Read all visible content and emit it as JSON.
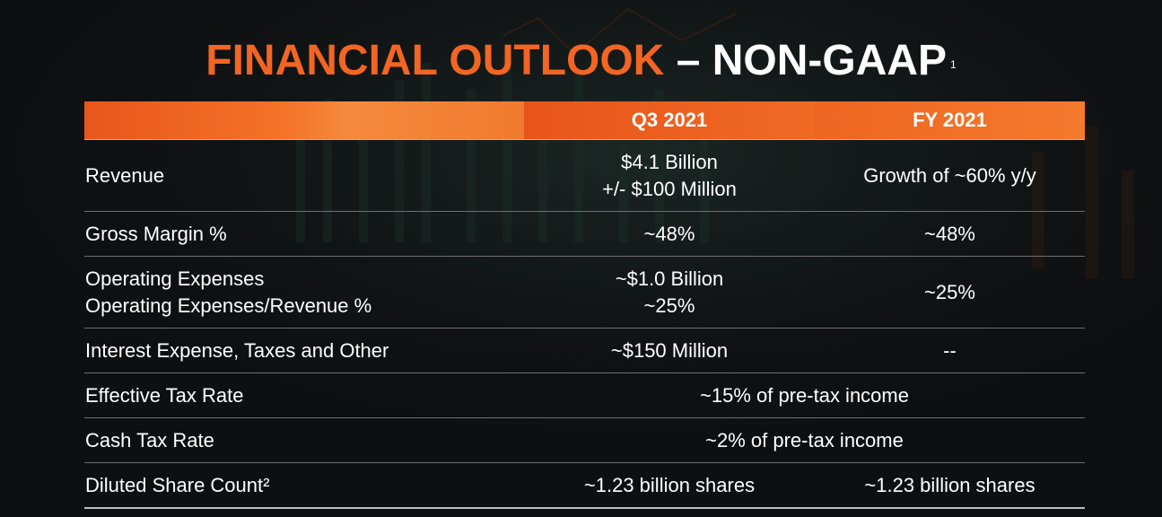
{
  "title": {
    "accent": "FINANCIAL OUTLOOK",
    "rest": "– NON-GAAP",
    "footnote": "1"
  },
  "table": {
    "headers": {
      "label": "",
      "q3": "Q3 2021",
      "fy": "FY 2021"
    },
    "rows": {
      "revenue": {
        "label": "Revenue",
        "q3_line1": "$4.1 Billion",
        "q3_line2": "+/- $100 Million",
        "fy": "Growth of ~60% y/y"
      },
      "gross_margin": {
        "label": "Gross Margin %",
        "q3": "~48%",
        "fy": "~48%"
      },
      "opex": {
        "label_line1": "Operating Expenses",
        "label_line2": "Operating Expenses/Revenue %",
        "q3_line1": "~$1.0 Billion",
        "q3_line2": "~25%",
        "fy": "~25%"
      },
      "interest": {
        "label": "Interest Expense, Taxes and Other",
        "q3": "~$150 Million",
        "fy": "--"
      },
      "effective_tax": {
        "label": "Effective Tax Rate",
        "value": "~15% of pre-tax income"
      },
      "cash_tax": {
        "label": "Cash Tax Rate",
        "value": "~2% of pre-tax income"
      },
      "diluted_shares": {
        "label": "Diluted Share Count²",
        "q3": "~1.23 billion shares",
        "fy": "~1.23 billion shares"
      }
    }
  },
  "colors": {
    "accent": "#f26522",
    "background": "#0e0f11",
    "text": "#ffffff"
  }
}
